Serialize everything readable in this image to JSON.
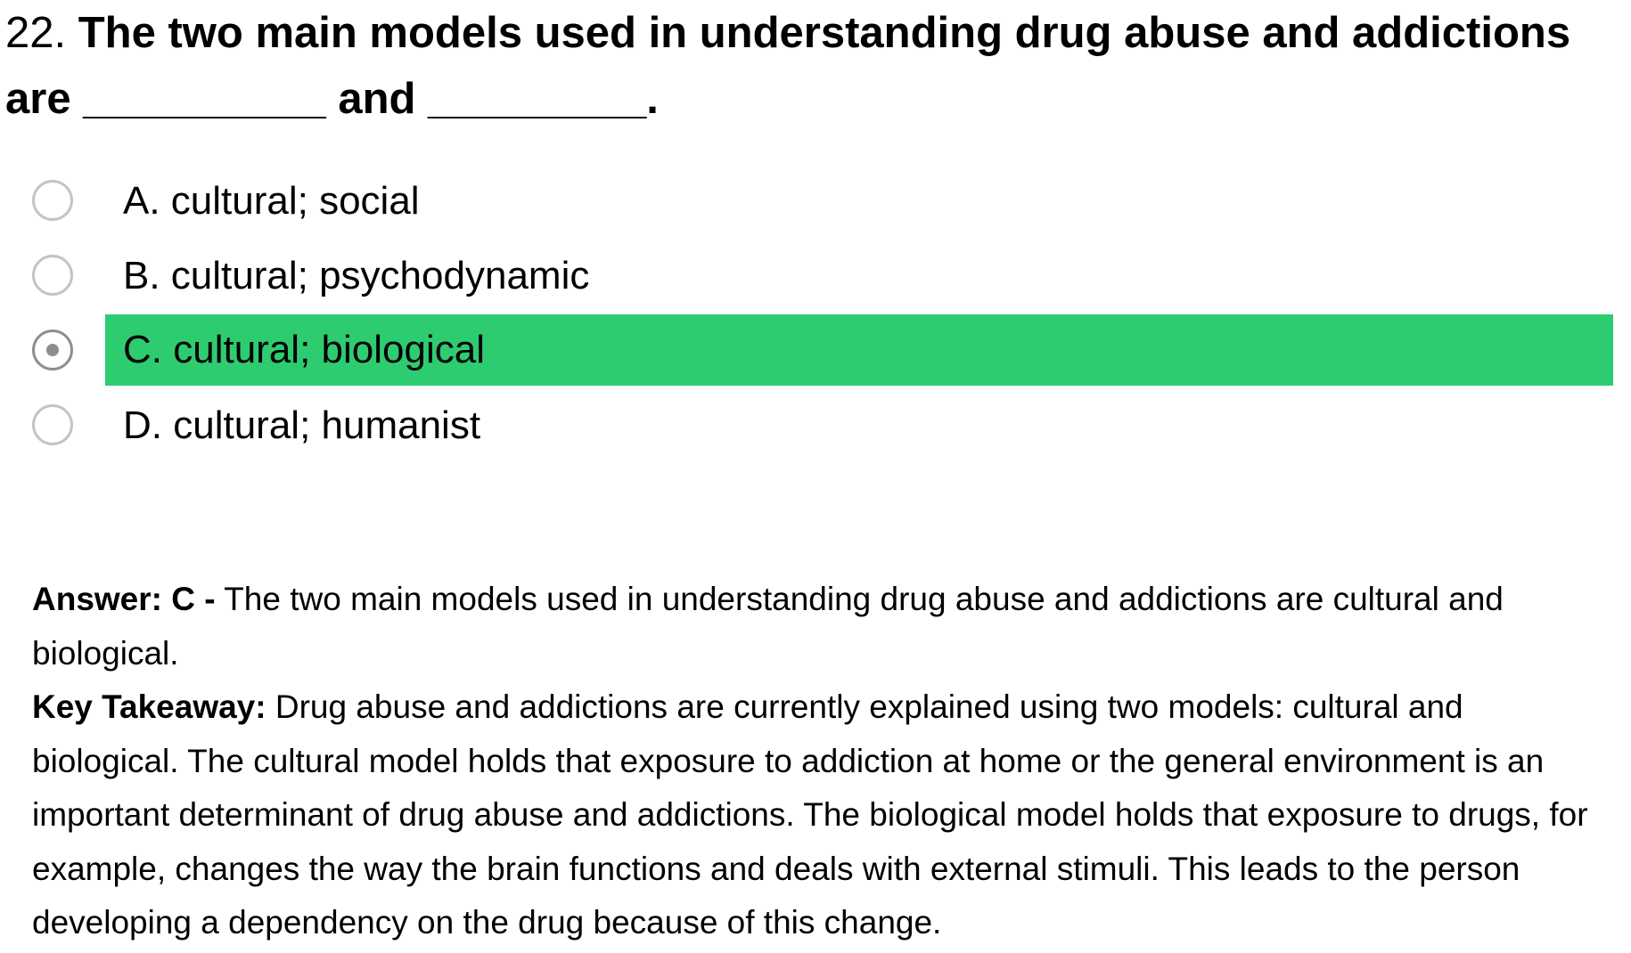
{
  "question": {
    "number": "22.",
    "text": "The two main models used in understanding drug abuse and addictions are __________ and _________."
  },
  "options": [
    {
      "letter": "A",
      "label": "A. cultural; social",
      "selected": false
    },
    {
      "letter": "B",
      "label": "B. cultural; psychodynamic",
      "selected": false
    },
    {
      "letter": "C",
      "label": "C. cultural; biological",
      "selected": true
    },
    {
      "letter": "D",
      "label": "D. cultural; humanist",
      "selected": false
    }
  ],
  "colors": {
    "selected_highlight": "#2ecc71",
    "radio_border": "#c4c4c4",
    "radio_checked": "#8e8e8e"
  },
  "answer": {
    "answer_label": "Answer: C -",
    "answer_text": " The two main models used in understanding drug abuse and addictions are cultural and biological.",
    "takeaway_label": "Key Takeaway:",
    "takeaway_text": " Drug abuse and addictions are currently explained using two models: cultural and biological. The cultural model holds that exposure to addiction at home or the general environment is an important determinant of drug abuse and addictions. The biological model holds that exposure to drugs, for example, changes the way the brain functions and deals with external stimuli. This leads to the person developing a dependency on the drug because of this change."
  }
}
